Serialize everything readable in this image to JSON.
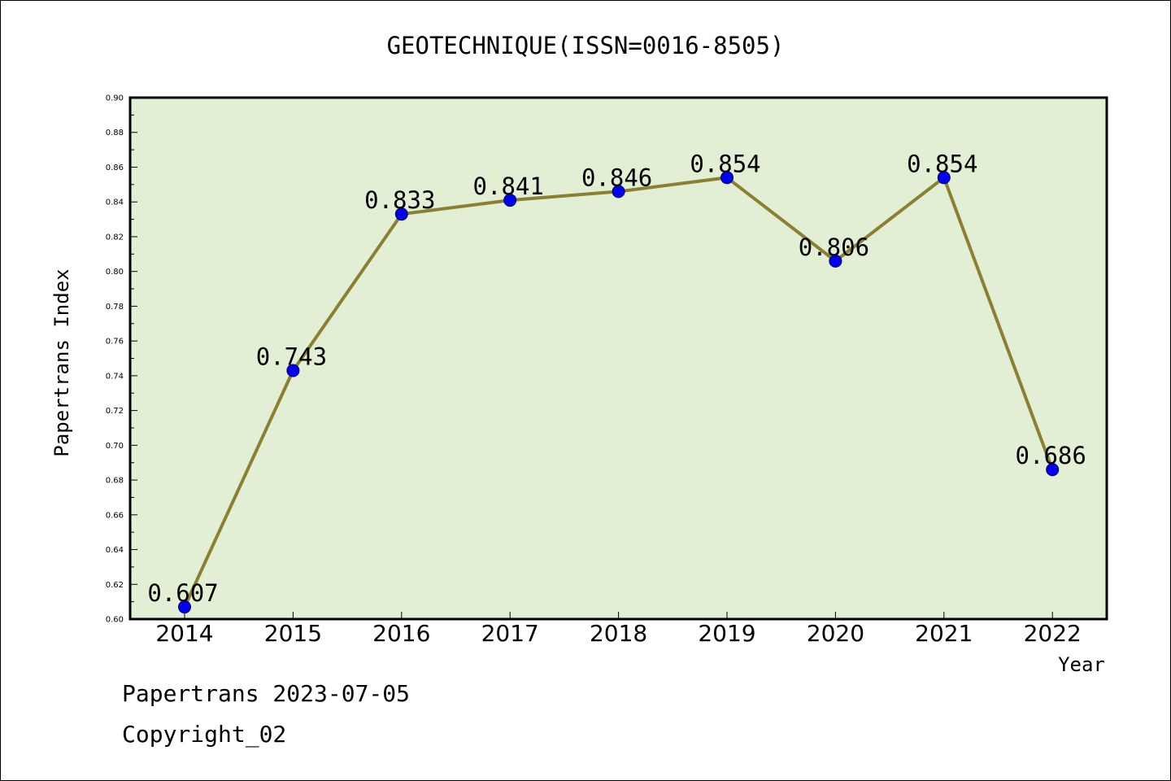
{
  "chart_data": {
    "type": "line",
    "title": "GEOTECHNIQUE(ISSN=0016-8505)",
    "xlabel": "Year",
    "ylabel": "Papertrans Index",
    "categories": [
      "2014",
      "2015",
      "2016",
      "2017",
      "2018",
      "2019",
      "2020",
      "2021",
      "2022"
    ],
    "values": [
      0.607,
      0.743,
      0.833,
      0.841,
      0.846,
      0.854,
      0.806,
      0.854,
      0.686
    ],
    "data_labels": [
      "0.607",
      "0.743",
      "0.833",
      "0.841",
      "0.846",
      "0.854",
      "0.806",
      "0.854",
      "0.686"
    ],
    "ylim": [
      0.6,
      0.9
    ],
    "yticks": [
      "0.60",
      "0.62",
      "0.64",
      "0.66",
      "0.68",
      "0.70",
      "0.72",
      "0.74",
      "0.76",
      "0.78",
      "0.80",
      "0.82",
      "0.84",
      "0.86",
      "0.88",
      "0.90"
    ],
    "grid": false,
    "colors": {
      "plot_background": "#e2efd4",
      "line": "#8b7f32",
      "marker": "#0000ee"
    }
  },
  "footer": {
    "line1": "Papertrans 2023-07-05",
    "line2": "Copyright_02"
  }
}
